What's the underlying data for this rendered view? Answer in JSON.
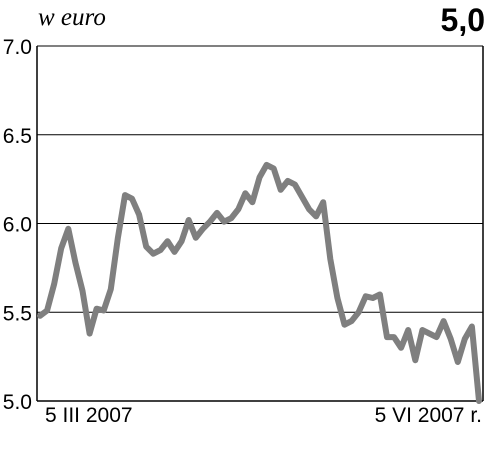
{
  "header": {
    "unit_label": "w euro",
    "current_value": "5,0"
  },
  "chart_data": {
    "type": "line",
    "title": "",
    "xlabel": "",
    "ylabel": "w euro",
    "ylim": [
      5.0,
      7.0
    ],
    "yticks": [
      "7.0",
      "6.5",
      "6.0",
      "5.5",
      "5.0"
    ],
    "ytick_values": [
      7.0,
      6.5,
      6.0,
      5.5,
      5.0
    ],
    "x_start_label": "5 III 2007",
    "x_end_label": "5 VI 2007 r.",
    "grid": "horizontal",
    "line_color": "#7f7f7f",
    "series": [
      {
        "values": [
          5.48,
          5.51,
          5.66,
          5.86,
          5.97,
          5.78,
          5.62,
          5.38,
          5.52,
          5.51,
          5.63,
          5.92,
          6.16,
          6.14,
          6.05,
          5.87,
          5.83,
          5.85,
          5.9,
          5.84,
          5.9,
          6.02,
          5.92,
          5.97,
          6.01,
          6.06,
          6.01,
          6.03,
          6.08,
          6.17,
          6.12,
          6.26,
          6.33,
          6.31,
          6.19,
          6.24,
          6.22,
          6.15,
          6.08,
          6.04,
          6.12,
          5.8,
          5.58,
          5.43,
          5.45,
          5.5,
          5.59,
          5.58,
          5.6,
          5.36,
          5.36,
          5.3,
          5.4,
          5.23,
          5.4,
          5.38,
          5.36,
          5.45,
          5.35,
          5.22,
          5.35,
          5.42,
          5.0
        ]
      }
    ]
  }
}
